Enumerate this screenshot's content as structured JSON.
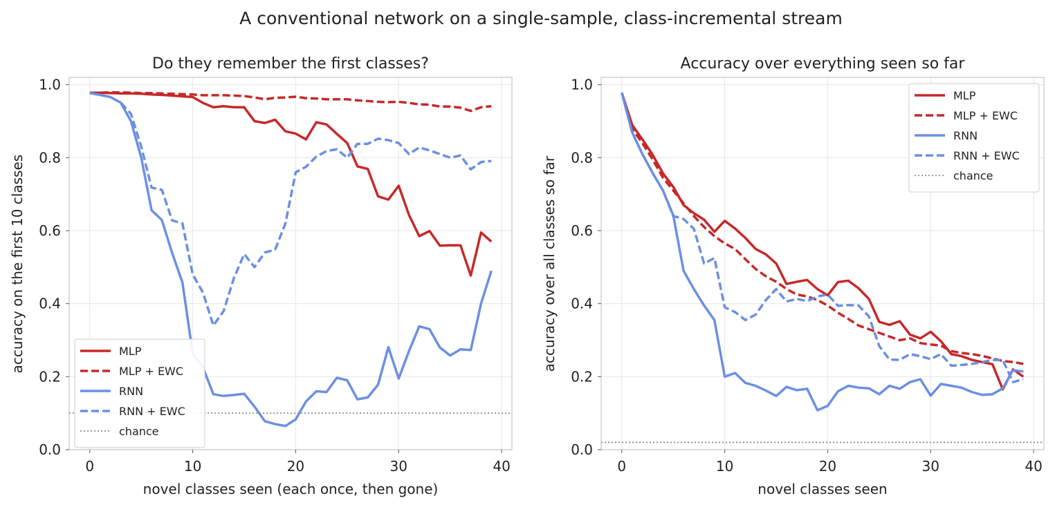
{
  "figure": {
    "title": "A conventional network on a single-sample, class-incremental stream"
  },
  "colors": {
    "mlp": "#c62828",
    "rnn": "#6b8fe3",
    "chance": "#8a8a8a"
  },
  "chart_data": [
    {
      "type": "line",
      "title": "Do they remember the first classes?",
      "xlabel": "novel classes seen (each once, then gone)",
      "ylabel": "accuracy on the first 10 classes",
      "xlim": [
        -2,
        41
      ],
      "ylim": [
        0,
        1.02
      ],
      "xticks": [
        0,
        10,
        20,
        30,
        40
      ],
      "yticks": [
        "0.0",
        "0.2",
        "0.4",
        "0.6",
        "0.8",
        "1.0"
      ],
      "grid": true,
      "legend": "lower-left",
      "x": [
        0,
        1,
        2,
        3,
        4,
        5,
        6,
        7,
        8,
        9,
        10,
        11,
        12,
        13,
        14,
        15,
        16,
        17,
        18,
        19,
        20,
        21,
        22,
        23,
        24,
        25,
        26,
        27,
        28,
        29,
        30,
        31,
        32,
        33,
        34,
        35,
        36,
        37,
        38,
        39
      ],
      "series": [
        {
          "name": "MLP",
          "style": "solid",
          "color": "mlp",
          "values": [
            0.978,
            0.978,
            0.977,
            0.976,
            0.976,
            0.975,
            0.973,
            0.972,
            0.97,
            0.968,
            0.966,
            0.95,
            0.938,
            0.941,
            0.938,
            0.938,
            0.9,
            0.895,
            0.904,
            0.872,
            0.866,
            0.85,
            0.897,
            0.891,
            0.865,
            0.84,
            0.776,
            0.769,
            0.694,
            0.685,
            0.723,
            0.643,
            0.585,
            0.599,
            0.559,
            0.56,
            0.56,
            0.477,
            0.595,
            0.57
          ]
        },
        {
          "name": "MLP + EWC",
          "style": "dashed",
          "color": "mlp",
          "values": [
            0.978,
            0.978,
            0.979,
            0.979,
            0.978,
            0.977,
            0.977,
            0.976,
            0.975,
            0.974,
            0.973,
            0.971,
            0.971,
            0.971,
            0.97,
            0.969,
            0.965,
            0.96,
            0.964,
            0.965,
            0.967,
            0.963,
            0.962,
            0.96,
            0.96,
            0.96,
            0.957,
            0.955,
            0.953,
            0.952,
            0.953,
            0.95,
            0.946,
            0.945,
            0.94,
            0.94,
            0.937,
            0.928,
            0.938,
            0.941
          ]
        },
        {
          "name": "RNN",
          "style": "solid",
          "color": "rnn",
          "values": [
            0.977,
            0.972,
            0.966,
            0.951,
            0.9,
            0.8,
            0.656,
            0.629,
            0.539,
            0.458,
            0.263,
            0.225,
            0.152,
            0.147,
            0.15,
            0.153,
            0.118,
            0.078,
            0.07,
            0.065,
            0.083,
            0.132,
            0.16,
            0.158,
            0.197,
            0.19,
            0.138,
            0.143,
            0.178,
            0.281,
            0.195,
            0.27,
            0.338,
            0.33,
            0.28,
            0.258,
            0.275,
            0.273,
            0.4,
            0.49
          ]
        },
        {
          "name": "RNN + EWC",
          "style": "dashed",
          "color": "rnn",
          "values": [
            0.977,
            0.972,
            0.966,
            0.951,
            0.92,
            0.83,
            0.718,
            0.712,
            0.628,
            0.62,
            0.48,
            0.43,
            0.34,
            0.38,
            0.47,
            0.536,
            0.5,
            0.54,
            0.548,
            0.62,
            0.76,
            0.775,
            0.803,
            0.818,
            0.823,
            0.8,
            0.838,
            0.838,
            0.852,
            0.848,
            0.84,
            0.81,
            0.828,
            0.82,
            0.81,
            0.8,
            0.806,
            0.768,
            0.788,
            0.791
          ]
        },
        {
          "name": "chance",
          "style": "dotted",
          "color": "chance",
          "constant": 0.1
        }
      ]
    },
    {
      "type": "line",
      "title": "Accuracy over everything seen so far",
      "xlabel": "novel classes seen",
      "ylabel": "accuracy over all classes so far",
      "xlim": [
        -2,
        41
      ],
      "ylim": [
        0,
        1.02
      ],
      "xticks": [
        0,
        10,
        20,
        30,
        40
      ],
      "yticks": [
        "0.0",
        "0.2",
        "0.4",
        "0.6",
        "0.8",
        "1.0"
      ],
      "grid": true,
      "legend": "upper-right",
      "x": [
        0,
        1,
        2,
        3,
        4,
        5,
        6,
        7,
        8,
        9,
        10,
        11,
        12,
        13,
        14,
        15,
        16,
        17,
        18,
        19,
        20,
        21,
        22,
        23,
        24,
        25,
        26,
        27,
        28,
        29,
        30,
        31,
        32,
        33,
        34,
        35,
        36,
        37,
        38,
        39
      ],
      "series": [
        {
          "name": "MLP",
          "style": "solid",
          "color": "mlp",
          "values": [
            0.978,
            0.89,
            0.85,
            0.808,
            0.757,
            0.72,
            0.67,
            0.648,
            0.63,
            0.597,
            0.627,
            0.606,
            0.58,
            0.55,
            0.535,
            0.51,
            0.454,
            0.46,
            0.465,
            0.44,
            0.423,
            0.459,
            0.463,
            0.442,
            0.413,
            0.35,
            0.342,
            0.352,
            0.315,
            0.305,
            0.323,
            0.297,
            0.262,
            0.256,
            0.246,
            0.24,
            0.234,
            0.165,
            0.22,
            0.2
          ]
        },
        {
          "name": "MLP + EWC",
          "style": "dashed",
          "color": "mlp",
          "values": [
            0.978,
            0.88,
            0.84,
            0.795,
            0.745,
            0.71,
            0.675,
            0.64,
            0.61,
            0.585,
            0.565,
            0.55,
            0.522,
            0.495,
            0.475,
            0.46,
            0.44,
            0.425,
            0.42,
            0.41,
            0.395,
            0.375,
            0.358,
            0.34,
            0.33,
            0.32,
            0.31,
            0.3,
            0.305,
            0.292,
            0.288,
            0.285,
            0.27,
            0.265,
            0.262,
            0.257,
            0.25,
            0.243,
            0.24,
            0.235
          ]
        },
        {
          "name": "RNN",
          "style": "solid",
          "color": "rnn",
          "values": [
            0.978,
            0.87,
            0.81,
            0.758,
            0.71,
            0.642,
            0.49,
            0.44,
            0.395,
            0.355,
            0.2,
            0.21,
            0.183,
            0.175,
            0.162,
            0.147,
            0.172,
            0.163,
            0.167,
            0.108,
            0.12,
            0.16,
            0.175,
            0.17,
            0.168,
            0.152,
            0.175,
            0.167,
            0.185,
            0.193,
            0.148,
            0.18,
            0.175,
            0.17,
            0.158,
            0.15,
            0.152,
            0.168,
            0.218,
            0.214
          ]
        },
        {
          "name": "RNN + EWC",
          "style": "dashed",
          "color": "rnn",
          "values": [
            0.978,
            0.87,
            0.81,
            0.758,
            0.71,
            0.64,
            0.632,
            0.605,
            0.51,
            0.525,
            0.39,
            0.377,
            0.355,
            0.37,
            0.41,
            0.44,
            0.406,
            0.413,
            0.407,
            0.42,
            0.425,
            0.394,
            0.396,
            0.395,
            0.365,
            0.284,
            0.247,
            0.246,
            0.262,
            0.256,
            0.248,
            0.262,
            0.23,
            0.232,
            0.235,
            0.24,
            0.246,
            0.245,
            0.185,
            0.193
          ]
        },
        {
          "name": "chance",
          "style": "dotted",
          "color": "chance",
          "constant": 0.02
        }
      ]
    }
  ]
}
